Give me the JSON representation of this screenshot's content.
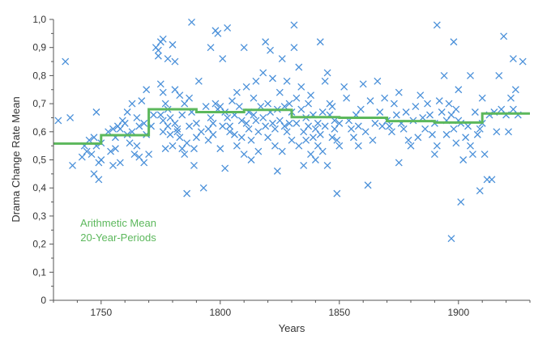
{
  "chart_data": {
    "type": "scatter",
    "xlabel": "Years",
    "ylabel": "Drama Change Rate Mean",
    "xlim": [
      1730,
      1930
    ],
    "ylim": [
      0,
      1
    ],
    "x_ticks": [
      1750,
      1800,
      1850,
      1900
    ],
    "y_ticks": [
      "0",
      "0,1",
      "0,2",
      "0,3",
      "0,4",
      "0,5",
      "0,6",
      "0,7",
      "0,8",
      "0,9",
      "1,0"
    ],
    "grid": false,
    "colors": {
      "points": "#4a90d9",
      "mean_line": "#5cb85c"
    },
    "legend": {
      "placement": "bottom-left",
      "lines": [
        "Arithmetic Mean",
        "20-Year-Periods"
      ]
    },
    "series": [
      {
        "type": "step",
        "steps": [
          {
            "x0": 1730,
            "x1": 1750,
            "y": 0.558
          },
          {
            "x0": 1750,
            "x1": 1770,
            "y": 0.588
          },
          {
            "x0": 1770,
            "x1": 1790,
            "y": 0.68
          },
          {
            "x0": 1790,
            "x1": 1810,
            "y": 0.67
          },
          {
            "x0": 1810,
            "x1": 1830,
            "y": 0.678
          },
          {
            "x0": 1830,
            "x1": 1850,
            "y": 0.652
          },
          {
            "x0": 1850,
            "x1": 1870,
            "y": 0.65
          },
          {
            "x0": 1870,
            "x1": 1890,
            "y": 0.638
          },
          {
            "x0": 1890,
            "x1": 1910,
            "y": 0.633
          },
          {
            "x0": 1910,
            "x1": 1930,
            "y": 0.665
          }
        ]
      },
      {
        "type": "scatter",
        "points": [
          [
            1732,
            0.64
          ],
          [
            1735,
            0.85
          ],
          [
            1737,
            0.65
          ],
          [
            1738,
            0.48
          ],
          [
            1742,
            0.51
          ],
          [
            1743,
            0.55
          ],
          [
            1744,
            0.53
          ],
          [
            1745,
            0.57
          ],
          [
            1746,
            0.52
          ],
          [
            1747,
            0.45
          ],
          [
            1747,
            0.58
          ],
          [
            1748,
            0.67
          ],
          [
            1748,
            0.55
          ],
          [
            1749,
            0.43
          ],
          [
            1749,
            0.49
          ],
          [
            1750,
            0.5
          ],
          [
            1750,
            0.56
          ],
          [
            1753,
            0.6
          ],
          [
            1754,
            0.53
          ],
          [
            1755,
            0.48
          ],
          [
            1755,
            0.61
          ],
          [
            1756,
            0.54
          ],
          [
            1756,
            0.58
          ],
          [
            1757,
            0.62
          ],
          [
            1758,
            0.61
          ],
          [
            1758,
            0.49
          ],
          [
            1759,
            0.64
          ],
          [
            1760,
            0.63
          ],
          [
            1761,
            0.59
          ],
          [
            1761,
            0.67
          ],
          [
            1762,
            0.56
          ],
          [
            1763,
            0.7
          ],
          [
            1763,
            0.6
          ],
          [
            1764,
            0.52
          ],
          [
            1765,
            0.65
          ],
          [
            1765,
            0.55
          ],
          [
            1766,
            0.62
          ],
          [
            1766,
            0.51
          ],
          [
            1767,
            0.71
          ],
          [
            1768,
            0.63
          ],
          [
            1768,
            0.49
          ],
          [
            1769,
            0.75
          ],
          [
            1769,
            0.59
          ],
          [
            1770,
            0.52
          ],
          [
            1771,
            0.62
          ],
          [
            1772,
            0.66
          ],
          [
            1773,
            0.9
          ],
          [
            1774,
            0.87
          ],
          [
            1774,
            0.89
          ],
          [
            1775,
            0.92
          ],
          [
            1775,
            0.66
          ],
          [
            1775,
            0.77
          ],
          [
            1776,
            0.93
          ],
          [
            1776,
            0.74
          ],
          [
            1776,
            0.64
          ],
          [
            1776,
            0.6
          ],
          [
            1777,
            0.7
          ],
          [
            1777,
            0.54
          ],
          [
            1778,
            0.68
          ],
          [
            1778,
            0.62
          ],
          [
            1778,
            0.86
          ],
          [
            1779,
            0.59
          ],
          [
            1779,
            0.65
          ],
          [
            1780,
            0.91
          ],
          [
            1780,
            0.55
          ],
          [
            1781,
            0.75
          ],
          [
            1781,
            0.63
          ],
          [
            1781,
            0.85
          ],
          [
            1782,
            0.61
          ],
          [
            1782,
            0.6
          ],
          [
            1783,
            0.73
          ],
          [
            1783,
            0.58
          ],
          [
            1784,
            0.66
          ],
          [
            1784,
            0.54
          ],
          [
            1785,
            0.52
          ],
          [
            1785,
            0.7
          ],
          [
            1786,
            0.38
          ],
          [
            1786,
            0.56
          ],
          [
            1787,
            0.62
          ],
          [
            1787,
            0.72
          ],
          [
            1788,
            0.99
          ],
          [
            1788,
            0.67
          ],
          [
            1789,
            0.48
          ],
          [
            1789,
            0.54
          ],
          [
            1790,
            0.58
          ],
          [
            1790,
            0.63
          ],
          [
            1791,
            0.78
          ],
          [
            1792,
            0.6
          ],
          [
            1793,
            0.4
          ],
          [
            1794,
            0.69
          ],
          [
            1795,
            0.61
          ],
          [
            1795,
            0.57
          ],
          [
            1796,
            0.9
          ],
          [
            1796,
            0.65
          ],
          [
            1797,
            0.63
          ],
          [
            1797,
            0.59
          ],
          [
            1798,
            0.96
          ],
          [
            1798,
            0.7
          ],
          [
            1799,
            0.95
          ],
          [
            1799,
            0.68
          ],
          [
            1800,
            0.54
          ],
          [
            1800,
            0.69
          ],
          [
            1801,
            0.86
          ],
          [
            1801,
            0.62
          ],
          [
            1802,
            0.47
          ],
          [
            1802,
            0.67
          ],
          [
            1803,
            0.97
          ],
          [
            1803,
            0.65
          ],
          [
            1804,
            0.62
          ],
          [
            1804,
            0.6
          ],
          [
            1805,
            0.71
          ],
          [
            1806,
            0.66
          ],
          [
            1806,
            0.59
          ],
          [
            1807,
            0.74
          ],
          [
            1807,
            0.55
          ],
          [
            1808,
            0.69
          ],
          [
            1809,
            0.64
          ],
          [
            1809,
            0.58
          ],
          [
            1810,
            0.9
          ],
          [
            1810,
            0.52
          ],
          [
            1811,
            0.76
          ],
          [
            1811,
            0.63
          ],
          [
            1812,
            0.67
          ],
          [
            1812,
            0.61
          ],
          [
            1813,
            0.57
          ],
          [
            1813,
            0.5
          ],
          [
            1814,
            0.72
          ],
          [
            1814,
            0.66
          ],
          [
            1815,
            0.64
          ],
          [
            1815,
            0.78
          ],
          [
            1816,
            0.6
          ],
          [
            1816,
            0.53
          ],
          [
            1817,
            0.69
          ],
          [
            1818,
            0.65
          ],
          [
            1818,
            0.81
          ],
          [
            1819,
            0.92
          ],
          [
            1819,
            0.62
          ],
          [
            1820,
            0.7
          ],
          [
            1820,
            0.58
          ],
          [
            1821,
            0.67
          ],
          [
            1821,
            0.89
          ],
          [
            1822,
            0.79
          ],
          [
            1822,
            0.63
          ],
          [
            1823,
            0.55
          ],
          [
            1823,
            0.61
          ],
          [
            1824,
            0.46
          ],
          [
            1824,
            0.68
          ],
          [
            1825,
            0.74
          ],
          [
            1825,
            0.64
          ],
          [
            1826,
            0.86
          ],
          [
            1826,
            0.53
          ],
          [
            1827,
            0.69
          ],
          [
            1827,
            0.62
          ],
          [
            1828,
            0.6
          ],
          [
            1828,
            0.78
          ],
          [
            1829,
            0.63
          ],
          [
            1829,
            0.7
          ],
          [
            1830,
            0.57
          ],
          [
            1830,
            0.67
          ],
          [
            1831,
            0.98
          ],
          [
            1831,
            0.9
          ],
          [
            1832,
            0.72
          ],
          [
            1832,
            0.63
          ],
          [
            1833,
            0.55
          ],
          [
            1833,
            0.83
          ],
          [
            1834,
            0.68
          ],
          [
            1834,
            0.76
          ],
          [
            1835,
            0.6
          ],
          [
            1835,
            0.48
          ],
          [
            1836,
            0.65
          ],
          [
            1836,
            0.57
          ],
          [
            1837,
            0.7
          ],
          [
            1837,
            0.62
          ],
          [
            1838,
            0.73
          ],
          [
            1838,
            0.52
          ],
          [
            1839,
            0.66
          ],
          [
            1839,
            0.58
          ],
          [
            1840,
            0.61
          ],
          [
            1840,
            0.5
          ],
          [
            1841,
            0.63
          ],
          [
            1841,
            0.55
          ],
          [
            1842,
            0.92
          ],
          [
            1842,
            0.59
          ],
          [
            1843,
            0.67
          ],
          [
            1843,
            0.53
          ],
          [
            1844,
            0.78
          ],
          [
            1844,
            0.62
          ],
          [
            1845,
            0.81
          ],
          [
            1845,
            0.48
          ],
          [
            1846,
            0.7
          ],
          [
            1846,
            0.66
          ],
          [
            1847,
            0.58
          ],
          [
            1847,
            0.69
          ],
          [
            1848,
            0.64
          ],
          [
            1848,
            0.61
          ],
          [
            1849,
            0.38
          ],
          [
            1849,
            0.57
          ],
          [
            1850,
            0.63
          ],
          [
            1850,
            0.55
          ],
          [
            1852,
            0.76
          ],
          [
            1853,
            0.72
          ],
          [
            1854,
            0.64
          ],
          [
            1855,
            0.61
          ],
          [
            1856,
            0.58
          ],
          [
            1857,
            0.66
          ],
          [
            1858,
            0.55
          ],
          [
            1858,
            0.62
          ],
          [
            1859,
            0.68
          ],
          [
            1860,
            0.77
          ],
          [
            1861,
            0.6
          ],
          [
            1862,
            0.41
          ],
          [
            1863,
            0.71
          ],
          [
            1864,
            0.57
          ],
          [
            1865,
            0.63
          ],
          [
            1866,
            0.78
          ],
          [
            1867,
            0.67
          ],
          [
            1868,
            0.62
          ],
          [
            1869,
            0.72
          ],
          [
            1870,
            0.64
          ],
          [
            1871,
            0.62
          ],
          [
            1872,
            0.6
          ],
          [
            1873,
            0.7
          ],
          [
            1874,
            0.66
          ],
          [
            1875,
            0.74
          ],
          [
            1875,
            0.49
          ],
          [
            1876,
            0.63
          ],
          [
            1877,
            0.61
          ],
          [
            1878,
            0.67
          ],
          [
            1879,
            0.57
          ],
          [
            1880,
            0.55
          ],
          [
            1881,
            0.64
          ],
          [
            1882,
            0.69
          ],
          [
            1883,
            0.58
          ],
          [
            1884,
            0.73
          ],
          [
            1885,
            0.65
          ],
          [
            1886,
            0.61
          ],
          [
            1887,
            0.7
          ],
          [
            1888,
            0.66
          ],
          [
            1889,
            0.59
          ],
          [
            1890,
            0.52
          ],
          [
            1890,
            0.63
          ],
          [
            1891,
            0.98
          ],
          [
            1891,
            0.55
          ],
          [
            1892,
            0.71
          ],
          [
            1893,
            0.67
          ],
          [
            1894,
            0.8
          ],
          [
            1895,
            0.64
          ],
          [
            1895,
            0.59
          ],
          [
            1896,
            0.7
          ],
          [
            1897,
            0.66
          ],
          [
            1897,
            0.22
          ],
          [
            1898,
            0.92
          ],
          [
            1898,
            0.61
          ],
          [
            1899,
            0.68
          ],
          [
            1899,
            0.56
          ],
          [
            1900,
            0.75
          ],
          [
            1900,
            0.64
          ],
          [
            1901,
            0.35
          ],
          [
            1901,
            0.63
          ],
          [
            1902,
            0.5
          ],
          [
            1903,
            0.58
          ],
          [
            1904,
            0.62
          ],
          [
            1905,
            0.8
          ],
          [
            1905,
            0.55
          ],
          [
            1906,
            0.52
          ],
          [
            1907,
            0.67
          ],
          [
            1908,
            0.59
          ],
          [
            1909,
            0.39
          ],
          [
            1909,
            0.61
          ],
          [
            1910,
            0.72
          ],
          [
            1910,
            0.63
          ],
          [
            1911,
            0.52
          ],
          [
            1912,
            0.43
          ],
          [
            1913,
            0.66
          ],
          [
            1914,
            0.43
          ],
          [
            1915,
            0.67
          ],
          [
            1916,
            0.6
          ],
          [
            1917,
            0.8
          ],
          [
            1918,
            0.68
          ],
          [
            1919,
            0.94
          ],
          [
            1920,
            0.66
          ],
          [
            1921,
            0.6
          ],
          [
            1922,
            0.72
          ],
          [
            1923,
            0.68
          ],
          [
            1923,
            0.86
          ],
          [
            1924,
            0.75
          ],
          [
            1925,
            0.66
          ],
          [
            1927,
            0.85
          ]
        ]
      }
    ]
  }
}
